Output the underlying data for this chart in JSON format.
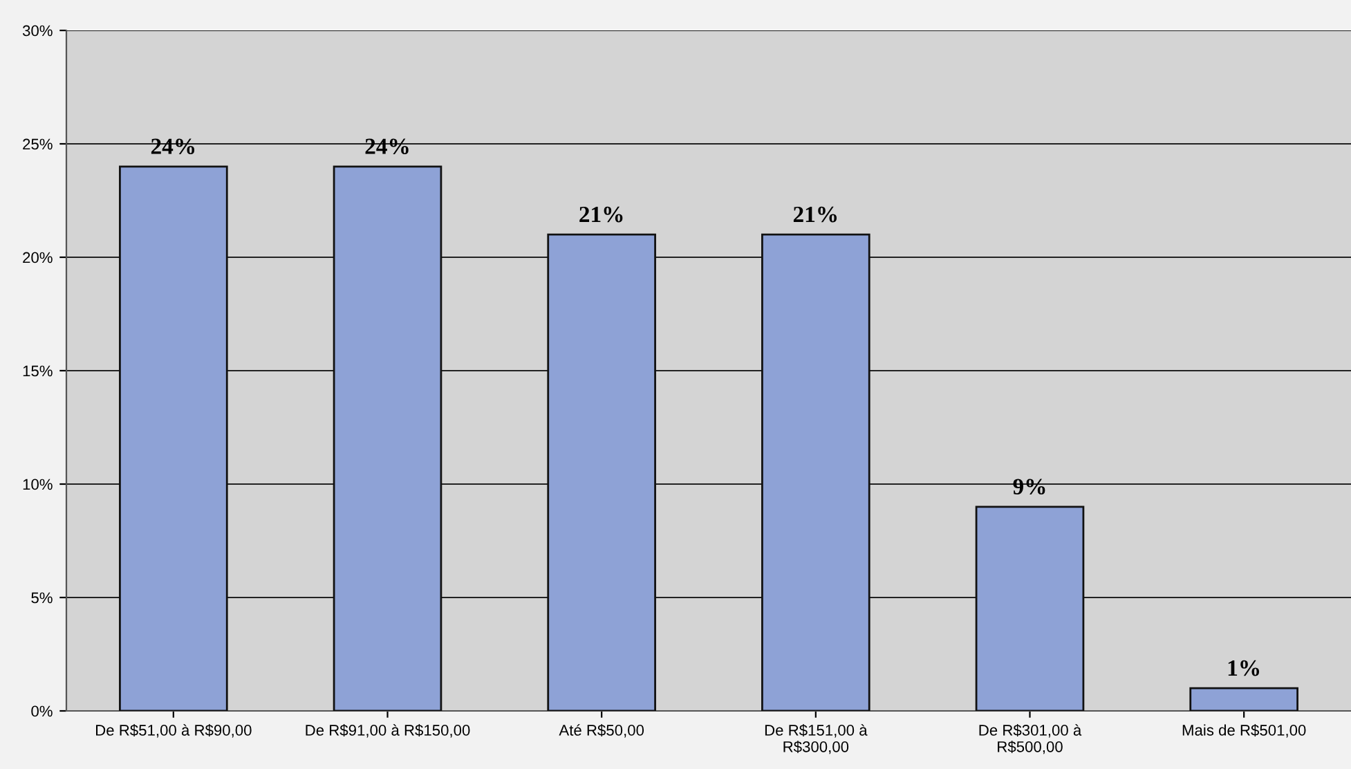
{
  "chart_data": {
    "type": "bar",
    "categories": [
      "De R$51,00 à R$90,00",
      "De R$91,00 à R$150,00",
      "Até R$50,00",
      "De R$151,00 à\nR$300,00",
      "De R$301,00 à\nR$500,00",
      "Mais de R$501,00"
    ],
    "values": [
      24,
      24,
      21,
      21,
      9,
      1
    ],
    "value_labels": [
      "24%",
      "24%",
      "21%",
      "21%",
      "9%",
      "1%"
    ],
    "color": "#8ea2d6",
    "ylim": [
      0,
      30
    ],
    "yticks": [
      {
        "value": 0,
        "label": "0%"
      },
      {
        "value": 5,
        "label": "5%"
      },
      {
        "value": 10,
        "label": "10%"
      },
      {
        "value": 15,
        "label": "15%"
      },
      {
        "value": 20,
        "label": "20%"
      },
      {
        "value": 25,
        "label": "25%"
      },
      {
        "value": 30,
        "label": "30%"
      }
    ],
    "grid": "y",
    "legend": false
  }
}
